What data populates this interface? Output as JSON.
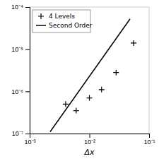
{
  "chart_data": {
    "type": "scatter",
    "xlabel": "Δx",
    "log": true,
    "grid": false,
    "legend": "upper left",
    "xlim": [
      0.001,
      0.1
    ],
    "ylim": [
      1e-07,
      0.0001
    ],
    "xticks": [
      {
        "value": 0.001,
        "label": "10⁻³"
      },
      {
        "value": 0.01,
        "label": "10⁻²"
      },
      {
        "value": 0.1,
        "label": "10⁻¹"
      }
    ],
    "yticks": [
      {
        "value": 1e-07,
        "label": "10⁻⁷"
      },
      {
        "value": 1e-06,
        "label": "10⁻⁶"
      },
      {
        "value": 1e-05,
        "label": "10⁻⁵"
      },
      {
        "value": 0.0001,
        "label": "10⁻⁴"
      }
    ],
    "series": [
      {
        "name": "4 Levels",
        "type": "scatter",
        "marker": "plus",
        "color": "#000000",
        "x": [
          0.004,
          0.006,
          0.01,
          0.016,
          0.028,
          0.055
        ],
        "values": [
          5e-07,
          3.5e-07,
          7e-07,
          1.1e-06,
          2.8e-06,
          1.4e-05
        ]
      },
      {
        "name": "Second Order",
        "type": "line",
        "line_style": "solid",
        "color": "#000000",
        "x": [
          0.0022,
          0.048
        ],
        "values": [
          1.1e-07,
          5.236363636363636e-05
        ]
      }
    ]
  }
}
